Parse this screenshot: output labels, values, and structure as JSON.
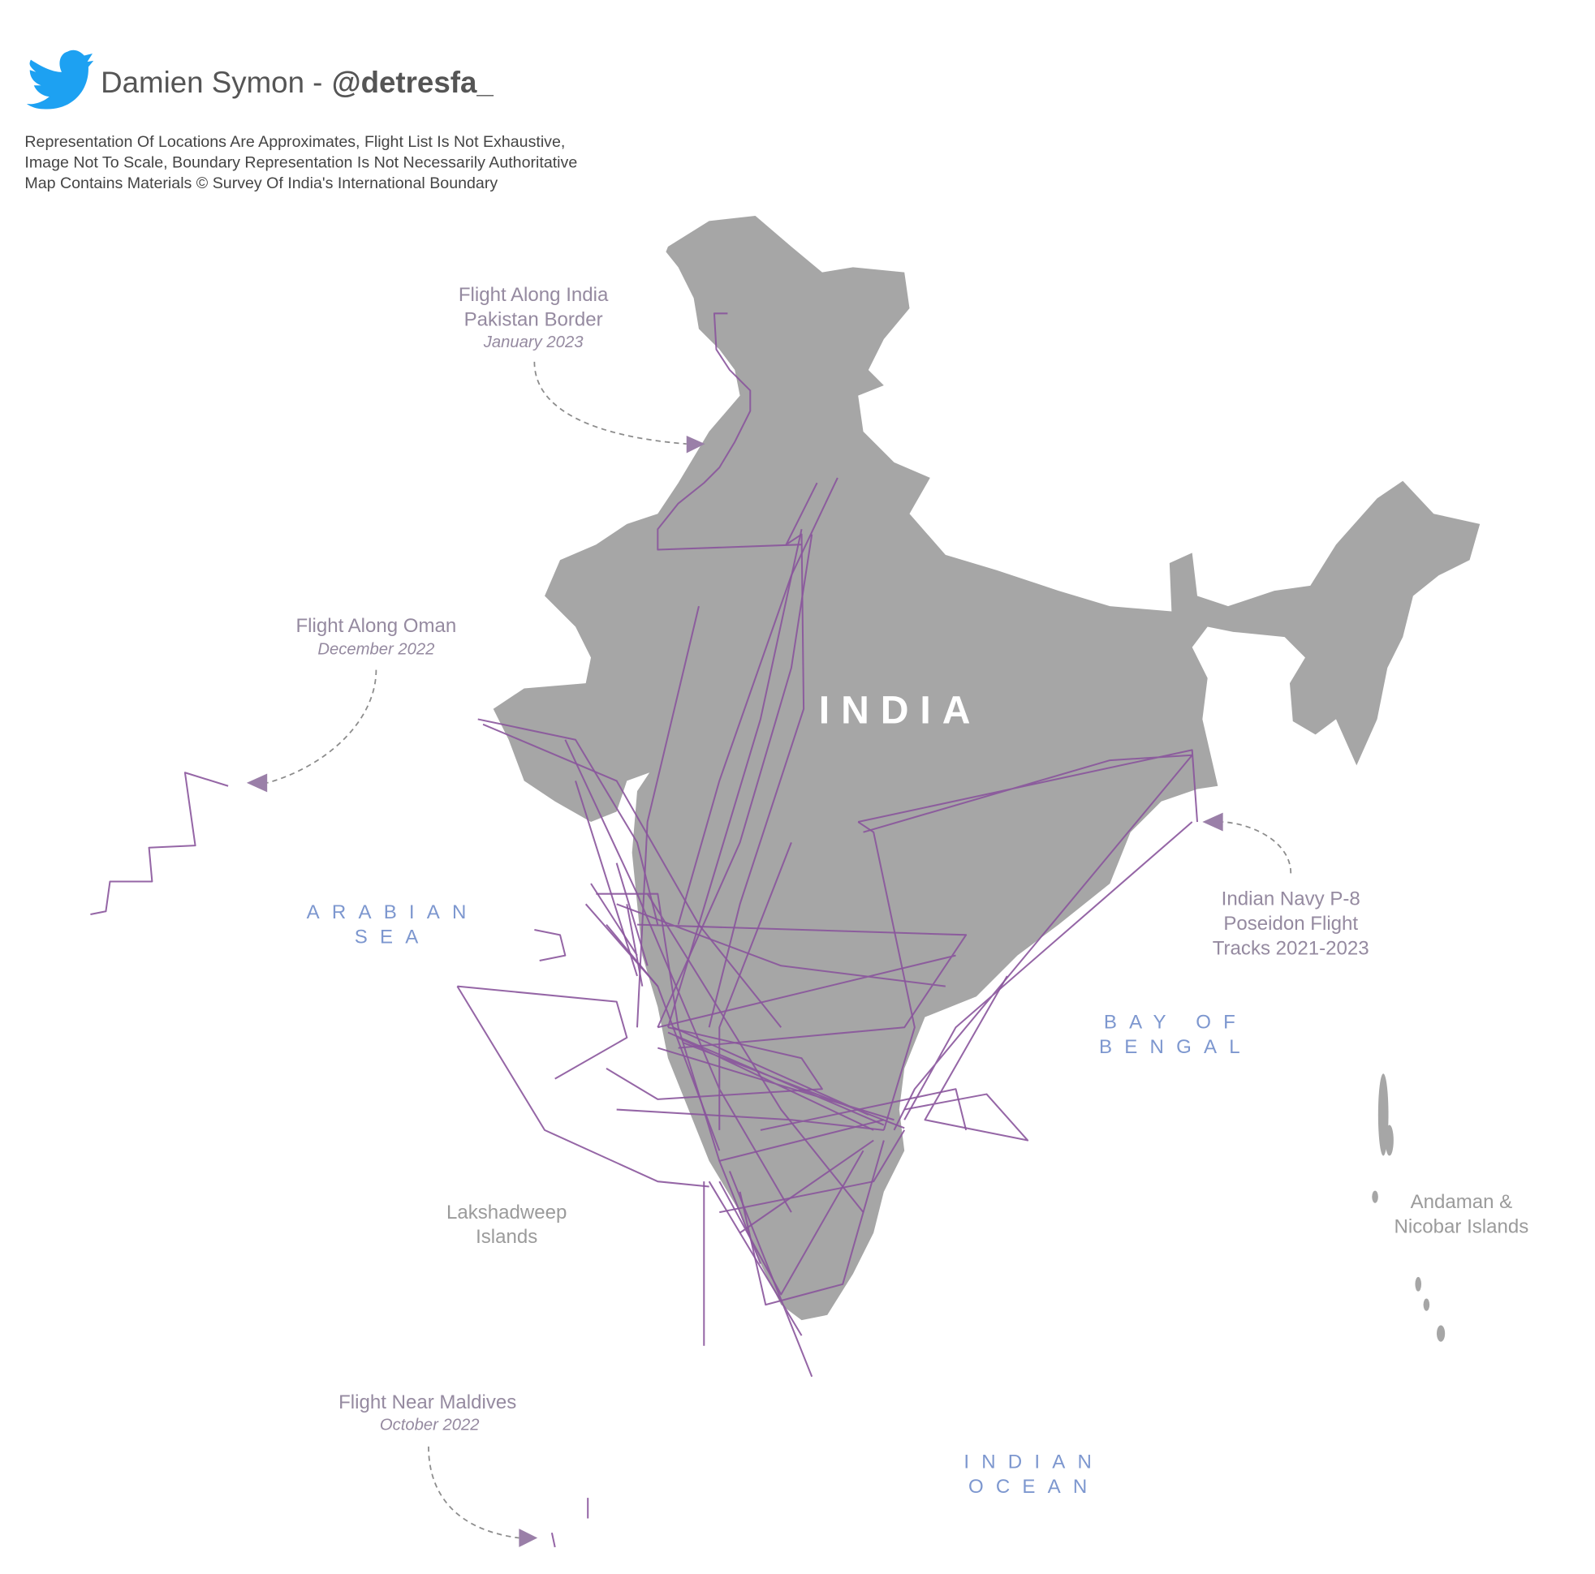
{
  "header": {
    "author": "Damien Symon -",
    "handle": "@detresfa_",
    "disclaimer": [
      "Representation Of Locations Are Approximates, Flight List Is Not Exhaustive,",
      "Image Not To Scale, Boundary Representation Is Not Necessarily Authoritative",
      "Map Contains Materials © Survey Of India's International Boundary"
    ]
  },
  "annotations": {
    "pakistan_border": {
      "title": [
        "Flight Along India",
        "Pakistan Border"
      ],
      "date": "January 2023"
    },
    "oman": {
      "title": [
        "Flight Along Oman"
      ],
      "date": "December 2022"
    },
    "p8_tracks": {
      "title": [
        "Indian Navy P-8",
        "Poseidon Flight",
        "Tracks 2021-2023"
      ]
    },
    "maldives": {
      "title": [
        "Flight Near Maldives"
      ],
      "date": "October 2022"
    }
  },
  "labels": {
    "country": "INDIA",
    "arabian_sea": [
      "ARABIAN",
      "SEA"
    ],
    "bay_of_bengal": [
      "BAY OF",
      "BENGAL"
    ],
    "indian_ocean": [
      "INDIAN",
      "OCEAN"
    ],
    "lakshadweep": [
      "Lakshadweep",
      "Islands"
    ],
    "andaman": [
      "Andaman &",
      "Nicobar Islands"
    ]
  }
}
